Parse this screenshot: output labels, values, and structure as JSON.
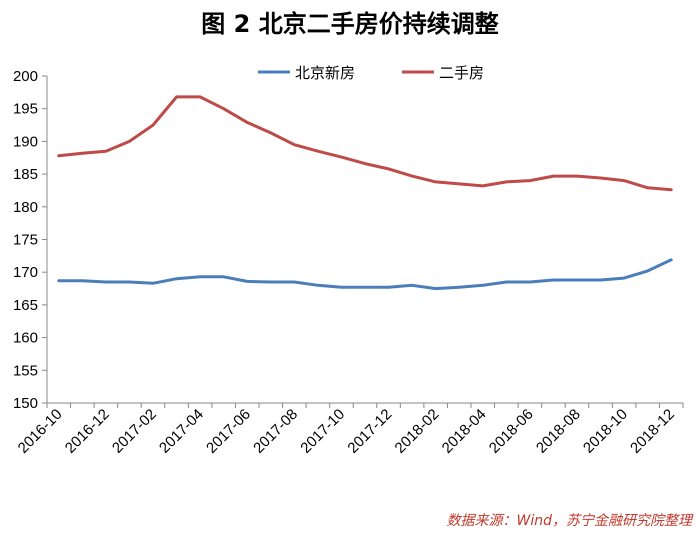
{
  "title": "图 2  北京二手房价持续调整",
  "source": "数据来源：Wind，苏宁金融研究院整理",
  "chart_data": {
    "type": "line",
    "title": "图 2  北京二手房价持续调整",
    "xlabel": "",
    "ylabel": "",
    "ylim": [
      150,
      200
    ],
    "yticks": [
      150,
      155,
      160,
      165,
      170,
      175,
      180,
      185,
      190,
      195,
      200
    ],
    "grid": false,
    "legend_position": "top-center",
    "x": [
      "2016-10",
      "2016-11",
      "2016-12",
      "2017-01",
      "2017-02",
      "2017-03",
      "2017-04",
      "2017-05",
      "2017-06",
      "2017-07",
      "2017-08",
      "2017-09",
      "2017-10",
      "2017-11",
      "2017-12",
      "2018-01",
      "2018-02",
      "2018-03",
      "2018-04",
      "2018-05",
      "2018-06",
      "2018-07",
      "2018-08",
      "2018-09",
      "2018-10",
      "2018-11",
      "2018-12"
    ],
    "x_tick_labels": [
      "2016-10",
      "2016-12",
      "2017-02",
      "2017-04",
      "2017-06",
      "2017-08",
      "2017-10",
      "2017-12",
      "2018-02",
      "2018-04",
      "2018-06",
      "2018-08",
      "2018-10",
      "2018-12"
    ],
    "series": [
      {
        "name": "北京新房",
        "color": "#4a7ebb",
        "values": [
          168.7,
          168.7,
          168.5,
          168.5,
          168.3,
          169.0,
          169.3,
          169.3,
          168.6,
          168.5,
          168.5,
          168.0,
          167.7,
          167.7,
          167.7,
          168.0,
          167.5,
          167.7,
          168.0,
          168.5,
          168.5,
          168.8,
          168.8,
          168.8,
          169.1,
          170.2,
          171.9
        ]
      },
      {
        "name": "二手房",
        "color": "#be4b48",
        "values": [
          187.8,
          188.2,
          188.5,
          190.0,
          192.5,
          196.8,
          196.8,
          195.0,
          192.9,
          191.3,
          189.5,
          188.5,
          187.6,
          186.6,
          185.8,
          184.7,
          183.8,
          183.5,
          183.2,
          183.8,
          184.0,
          184.7,
          184.7,
          184.4,
          184.0,
          182.9,
          182.6
        ]
      }
    ]
  }
}
